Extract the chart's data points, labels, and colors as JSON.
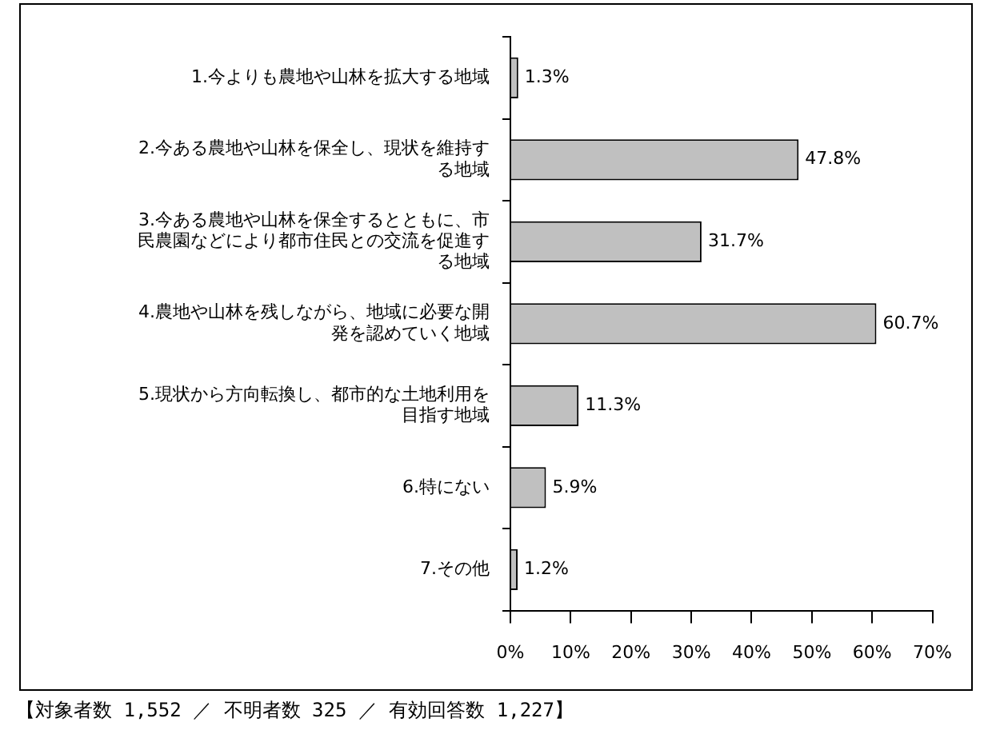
{
  "chart_data": {
    "type": "bar",
    "orientation": "horizontal",
    "categories": [
      "1.今よりも農地や山林を拡大する地域",
      "2.今ある農地や山林を保全し、現状を維持する地域",
      "3.今ある農地や山林を保全するとともに、市民農園などにより都市住民との交流を促進する地域",
      "4.農地や山林を残しながら、地域に必要な開発を認めていく地域",
      "5.現状から方向転換し、都市的な土地利用を目指す地域",
      "6.特にない",
      "7.その他"
    ],
    "values": [
      1.3,
      47.8,
      31.7,
      60.7,
      11.3,
      5.9,
      1.2
    ],
    "value_labels": [
      "1.3%",
      "47.8%",
      "31.7%",
      "60.7%",
      "11.3%",
      "5.9%",
      "1.2%"
    ],
    "color": "#c0c0c0",
    "xlim": [
      0,
      70
    ],
    "xticks": [
      {
        "value": 0,
        "label": "0%"
      },
      {
        "value": 10,
        "label": "10%"
      },
      {
        "value": 20,
        "label": "20%"
      },
      {
        "value": 30,
        "label": "30%"
      },
      {
        "value": 40,
        "label": "40%"
      },
      {
        "value": 50,
        "label": "50%"
      },
      {
        "value": 60,
        "label": "60%"
      },
      {
        "value": 70,
        "label": "70%"
      }
    ],
    "grid": false,
    "legend": false,
    "annotations": [
      "【対象者数 1,552 ／ 不明者数 325 ／ 有効回答数 1,227】"
    ]
  }
}
